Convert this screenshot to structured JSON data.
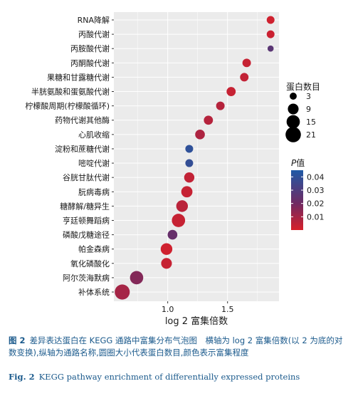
{
  "chart_data": {
    "type": "scatter",
    "xlabel": "log 2 富集倍数",
    "ylabel": "",
    "xlim": [
      0.55,
      1.93
    ],
    "xticks": [
      {
        "value": 1.0,
        "label": "1.0"
      },
      {
        "value": 1.5,
        "label": "1.5"
      }
    ],
    "grid": true,
    "categories": [
      "RNA降解",
      "丙酸代谢",
      "丙胺酸代谢",
      "丙酮酸代谢",
      "果糖和甘露糖代谢",
      "半胱氨酸和蛋氨酸代谢",
      "柠檬酸周期(柠檬酸循环)",
      "药物代谢其他酶",
      "心肌收缩",
      "淀粉和蔗糖代谢",
      "嘧啶代谢",
      "谷胱甘肽代谢",
      "朊病毒病",
      "糖酵解/糖异生",
      "亨廷顿舞蹈病",
      "磷酸戊糖途径",
      "帕金森病",
      "氧化磷酸化",
      "阿尔茨海默病",
      "补体系统"
    ],
    "points": [
      {
        "category": "RNA降解",
        "x": 1.86,
        "count": 4,
        "p": 0.002
      },
      {
        "category": "丙酸代谢",
        "x": 1.86,
        "count": 4,
        "p": 0.003
      },
      {
        "category": "丙胺酸代谢",
        "x": 1.86,
        "count": 2,
        "p": 0.03
      },
      {
        "category": "丙酮酸代谢",
        "x": 1.66,
        "count": 5,
        "p": 0.004
      },
      {
        "category": "果糖和甘露糖代谢",
        "x": 1.64,
        "count": 5,
        "p": 0.005
      },
      {
        "category": "半胱氨酸和蛋氨酸代谢",
        "x": 1.53,
        "count": 6,
        "p": 0.004
      },
      {
        "category": "柠檬酸周期(柠檬酸循环)",
        "x": 1.44,
        "count": 5,
        "p": 0.008
      },
      {
        "category": "药物代谢其他酶",
        "x": 1.34,
        "count": 6,
        "p": 0.008
      },
      {
        "category": "心肌收缩",
        "x": 1.27,
        "count": 7,
        "p": 0.01
      },
      {
        "category": "淀粉和蔗糖代谢",
        "x": 1.18,
        "count": 4,
        "p": 0.041
      },
      {
        "category": "嘧啶代谢",
        "x": 1.18,
        "count": 4,
        "p": 0.04
      },
      {
        "category": "谷胱甘肽代谢",
        "x": 1.18,
        "count": 8,
        "p": 0.005
      },
      {
        "category": "朊病毒病",
        "x": 1.16,
        "count": 10,
        "p": 0.004
      },
      {
        "category": "糖酵解/糖异生",
        "x": 1.12,
        "count": 11,
        "p": 0.007
      },
      {
        "category": "亨廷顿舞蹈病",
        "x": 1.09,
        "count": 15,
        "p": 0.004
      },
      {
        "category": "磷酸戊糖途径",
        "x": 1.04,
        "count": 7,
        "p": 0.027
      },
      {
        "category": "帕金森病",
        "x": 0.99,
        "count": 11,
        "p": 0.002
      },
      {
        "category": "氧化磷酸化",
        "x": 0.99,
        "count": 9,
        "p": 0.004
      },
      {
        "category": "阿尔茨海默病",
        "x": 0.74,
        "count": 15,
        "p": 0.02
      },
      {
        "category": "补体系统",
        "x": 0.62,
        "count": 20,
        "p": 0.012
      }
    ],
    "size_legend": {
      "title": "蛋白数目",
      "values": [
        3,
        9,
        15,
        21
      ]
    },
    "color_legend": {
      "title_italic": "P",
      "title_rest": "值",
      "min": 0.0,
      "max": 0.045,
      "ticks": [
        {
          "value": 0.04,
          "label": "0.04"
        },
        {
          "value": 0.03,
          "label": "0.03"
        },
        {
          "value": 0.02,
          "label": "0.02"
        },
        {
          "value": 0.01,
          "label": "0.01"
        }
      ],
      "low_color": "#d7202a",
      "high_color": "#1f5aa6"
    },
    "panel_background": "#ebebeb",
    "grid_color": "#ffffff"
  },
  "caption": {
    "cn_label": "图 2",
    "cn_text": "差异表达蛋白在 KEGG 通路中富集分布气泡图　横轴为 log 2 富集倍数(以 2 为底的对数变换),纵轴为通路名称,圆圈大小代表蛋白数目,颜色表示富集程度",
    "en_label": "Fig. 2",
    "en_text": "KEGG pathway enrichment of differentially expressed proteins"
  }
}
